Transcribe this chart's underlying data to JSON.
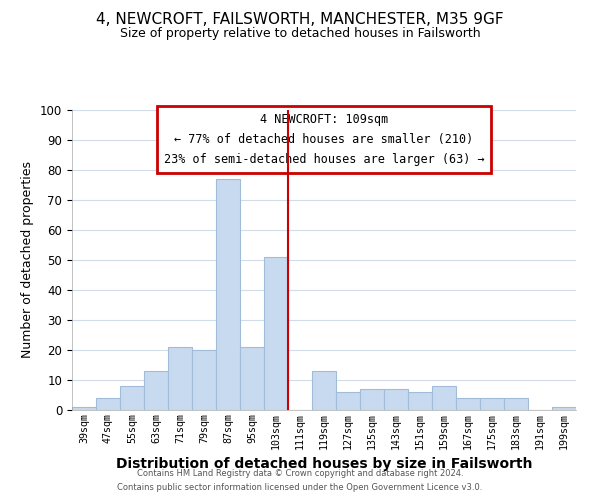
{
  "title": "4, NEWCROFT, FAILSWORTH, MANCHESTER, M35 9GF",
  "subtitle": "Size of property relative to detached houses in Failsworth",
  "xlabel": "Distribution of detached houses by size in Failsworth",
  "ylabel": "Number of detached properties",
  "bins": [
    "39sqm",
    "47sqm",
    "55sqm",
    "63sqm",
    "71sqm",
    "79sqm",
    "87sqm",
    "95sqm",
    "103sqm",
    "111sqm",
    "119sqm",
    "127sqm",
    "135sqm",
    "143sqm",
    "151sqm",
    "159sqm",
    "167sqm",
    "175sqm",
    "183sqm",
    "191sqm",
    "199sqm"
  ],
  "counts": [
    1,
    4,
    8,
    13,
    21,
    20,
    77,
    21,
    51,
    0,
    13,
    6,
    7,
    7,
    6,
    8,
    4,
    4,
    4,
    0,
    1
  ],
  "bar_color": "#c8daf0",
  "bar_edge_color": "#a0bcd8",
  "vline_color": "#cc0000",
  "ylim": [
    0,
    100
  ],
  "yticks": [
    0,
    10,
    20,
    30,
    40,
    50,
    60,
    70,
    80,
    90,
    100
  ],
  "annotation_title": "4 NEWCROFT: 109sqm",
  "annotation_line1": "← 77% of detached houses are smaller (210)",
  "annotation_line2": "23% of semi-detached houses are larger (63) →",
  "annotation_box_color": "#ffffff",
  "annotation_box_edge": "#cc0000",
  "footer1": "Contains HM Land Registry data © Crown copyright and database right 2024.",
  "footer2": "Contains public sector information licensed under the Open Government Licence v3.0.",
  "background_color": "#ffffff",
  "grid_color": "#d0dce8",
  "title_fontsize": 11,
  "subtitle_fontsize": 9,
  "ylabel_fontsize": 9,
  "xlabel_fontsize": 10
}
